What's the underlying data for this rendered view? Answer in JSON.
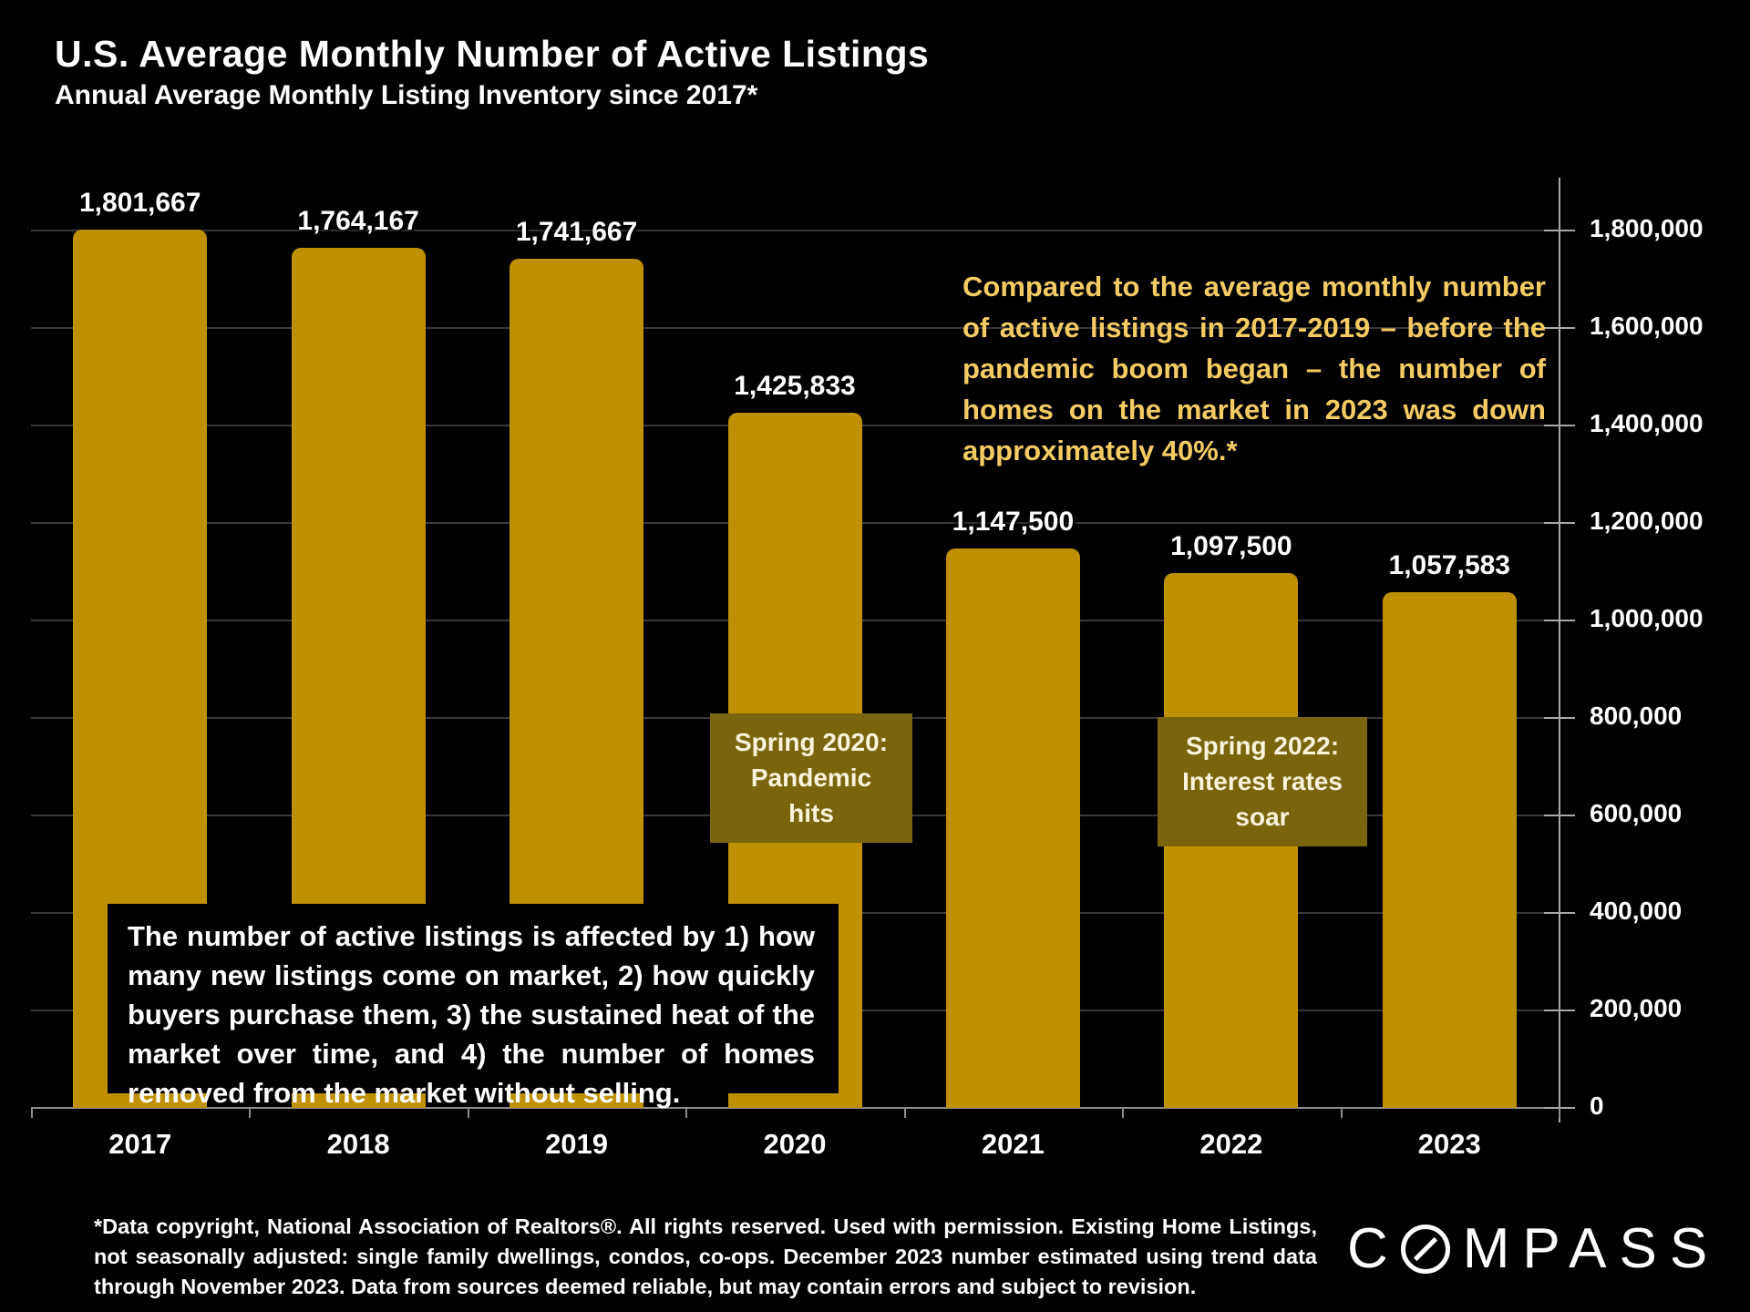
{
  "slide": {
    "title": "U.S. Average Monthly Number of Active Listings",
    "subtitle": "Annual Average Monthly Listing Inventory since 2017*"
  },
  "chart_data": {
    "type": "bar",
    "title": "U.S. Average Monthly Number of Active Listings",
    "subtitle": "Annual Average Monthly Listing Inventory since 2017*",
    "categories": [
      "2017",
      "2018",
      "2019",
      "2020",
      "2021",
      "2022",
      "2023"
    ],
    "values": [
      1801667,
      1764167,
      1741667,
      1425833,
      1147500,
      1097500,
      1057583
    ],
    "value_labels": [
      "1,801,667",
      "1,764,167",
      "1,741,667",
      "1,425,833",
      "1,147,500",
      "1,097,500",
      "1,057,583"
    ],
    "ylim": [
      0,
      1800000
    ],
    "ytick_step": 200000,
    "ytick_labels": [
      "0",
      "200,000",
      "400,000",
      "600,000",
      "800,000",
      "1,000,000",
      "1,200,000",
      "1,400,000",
      "1,600,000",
      "1,800,000"
    ],
    "y_axis_side": "right",
    "grid": true,
    "legend": "none",
    "bar_color": "#BF9102",
    "gridline_color": "#383838",
    "axis_color": "#a8a8a8"
  },
  "annotations": {
    "comparison_note": "Compared to the average monthly number of active listings in 2017-2019 – before the pandemic boom began – the number of homes on the market in 2023 was down approximately 40%.*",
    "spring_2020": "Spring 2020:\nPandemic\nhits",
    "spring_2022": "Spring 2022:\nInterest rates\nsoar",
    "info_box": "The number of active listings is affected by 1) how many new listings come on market, 2) how quickly buyers purchase them, 3) the sustained heat of the market over time, and 4) the number of homes removed from the market without selling."
  },
  "footer": {
    "disclaimer": "*Data copyright, National Association of Realtors®. All rights reserved. Used with permission. Existing Home Listings, not seasonally adjusted: single family dwellings, condos, co-ops. December 2023 number estimated using trend data through November 2023. Data from sources deemed reliable, but may contain errors and subject to revision.",
    "brand_c": "C",
    "brand_rest": "MPASS"
  },
  "colors": {
    "background": "#000000",
    "bar_gold": "#BF9102",
    "note_gold": "#F5CB63",
    "callout_olive": "#7A650E",
    "callout_text": "#FBF3DA",
    "text_white": "#FFFFFF"
  }
}
